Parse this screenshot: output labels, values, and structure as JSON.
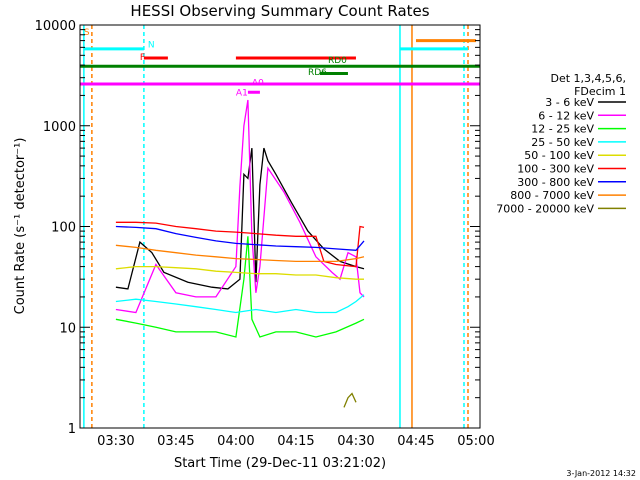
{
  "chart_data": {
    "type": "line",
    "title": "HESSI Observing Summary Count Rates",
    "xlabel": "Start Time (29-Dec-11 03:21:02)",
    "ylabel": "Count Rate (s⁻¹ detector⁻¹)",
    "y_scale": "log",
    "ylim": [
      1,
      10000
    ],
    "xlim": [
      "03:21:02",
      "05:01:00"
    ],
    "x_ticks": [
      "03:30",
      "03:45",
      "04:00",
      "04:15",
      "04:30",
      "04:45",
      "05:00"
    ],
    "y_ticks": [
      "1",
      "10",
      "100",
      "1000",
      "10000"
    ],
    "timestamp": "3-Jan-2012 14:32",
    "legend": {
      "placement": "right",
      "header": [
        "Det 1,3,4,5,6,",
        "FDecim 1"
      ]
    },
    "series": [
      {
        "name": "3 - 6 keV",
        "color": "#000000",
        "x": [
          "03:30",
          "03:33",
          "03:36",
          "03:39",
          "03:42",
          "03:48",
          "03:54",
          "03:58",
          "04:01",
          "04:02",
          "04:03",
          "04:04",
          "04:05",
          "04:06",
          "04:07",
          "04:08",
          "04:10",
          "04:14",
          "04:18",
          "04:22",
          "04:26",
          "04:30",
          "04:32"
        ],
        "y": [
          25,
          24,
          70,
          55,
          35,
          28,
          25,
          24,
          30,
          330,
          300,
          600,
          28,
          260,
          600,
          450,
          330,
          170,
          90,
          60,
          45,
          40,
          38
        ]
      },
      {
        "name": "6 - 12 keV",
        "color": "#ff00ff",
        "x": [
          "03:30",
          "03:35",
          "03:40",
          "03:45",
          "03:50",
          "03:55",
          "04:00",
          "04:01",
          "04:02",
          "04:03",
          "04:04",
          "04:05",
          "04:06",
          "04:08",
          "04:12",
          "04:16",
          "04:20",
          "04:24",
          "04:26",
          "04:28",
          "04:30",
          "04:31",
          "04:32"
        ],
        "y": [
          15,
          14,
          42,
          22,
          20,
          20,
          40,
          250,
          1000,
          1800,
          80,
          22,
          40,
          380,
          220,
          110,
          50,
          35,
          30,
          55,
          50,
          22,
          20
        ]
      },
      {
        "name": "12 - 25 keV",
        "color": "#00ff00",
        "x": [
          "03:30",
          "03:35",
          "03:40",
          "03:45",
          "03:50",
          "03:55",
          "04:00",
          "04:02",
          "04:03",
          "04:04",
          "04:06",
          "04:10",
          "04:15",
          "04:20",
          "04:25",
          "04:30",
          "04:32"
        ],
        "y": [
          12,
          11,
          10,
          9,
          9,
          9,
          8,
          30,
          80,
          12,
          8,
          9,
          9,
          8,
          9,
          11,
          12
        ]
      },
      {
        "name": "25 - 50 keV",
        "color": "#00ffff",
        "x": [
          "03:30",
          "03:35",
          "03:40",
          "03:45",
          "03:50",
          "03:55",
          "04:00",
          "04:05",
          "04:10",
          "04:15",
          "04:20",
          "04:25",
          "04:28",
          "04:30",
          "04:32"
        ],
        "y": [
          18,
          19,
          18,
          17,
          16,
          15,
          14,
          15,
          14,
          15,
          14,
          14,
          16,
          18,
          21
        ]
      },
      {
        "name": "50 - 100 keV",
        "color": "#dddd00",
        "x": [
          "03:30",
          "03:35",
          "03:40",
          "03:45",
          "03:50",
          "03:55",
          "04:00",
          "04:05",
          "04:10",
          "04:15",
          "04:20",
          "04:25",
          "04:30",
          "04:32"
        ],
        "y": [
          38,
          40,
          40,
          39,
          38,
          36,
          35,
          34,
          34,
          33,
          33,
          31,
          30,
          30
        ]
      },
      {
        "name": "100 - 300 keV",
        "color": "#ff0000",
        "x": [
          "03:30",
          "03:35",
          "03:40",
          "03:45",
          "03:50",
          "03:55",
          "04:00",
          "04:05",
          "04:10",
          "04:15",
          "04:20",
          "04:22",
          "04:25",
          "04:30",
          "04:31",
          "04:32"
        ],
        "y": [
          110,
          110,
          108,
          100,
          95,
          90,
          88,
          85,
          82,
          80,
          80,
          45,
          42,
          40,
          100,
          98
        ]
      },
      {
        "name": "300 - 800 keV",
        "color": "#0000ff",
        "x": [
          "03:30",
          "03:35",
          "03:40",
          "03:45",
          "03:50",
          "03:55",
          "04:00",
          "04:05",
          "04:10",
          "04:15",
          "04:20",
          "04:25",
          "04:30",
          "04:32"
        ],
        "y": [
          100,
          98,
          95,
          85,
          78,
          72,
          68,
          66,
          64,
          63,
          62,
          60,
          58,
          72
        ]
      },
      {
        "name": "800 - 7000 keV",
        "color": "#ff8000",
        "x": [
          "03:30",
          "03:35",
          "03:40",
          "03:45",
          "03:50",
          "03:55",
          "04:00",
          "04:05",
          "04:10",
          "04:15",
          "04:20",
          "04:25",
          "04:30",
          "04:32"
        ],
        "y": [
          65,
          62,
          58,
          55,
          52,
          50,
          48,
          47,
          46,
          45,
          45,
          45,
          48,
          50
        ]
      },
      {
        "name": "7000 - 20000 keV",
        "color": "#808000",
        "x": [
          "04:27",
          "04:28",
          "04:29",
          "04:30"
        ],
        "y": [
          1.6,
          2.0,
          2.2,
          1.8
        ]
      }
    ],
    "flag_bars": [
      {
        "label": "S",
        "color": "#ff8000",
        "label_x": "03:22",
        "label_y": 8000
      },
      {
        "label": "N",
        "color": "#00ffff",
        "label_x": "03:38",
        "label_y": 6000
      },
      {
        "label": "F",
        "color": "#ff0000",
        "label_x": "03:36",
        "label_y": 4500
      },
      {
        "label": "RD0",
        "color": "#008000",
        "label_x": "04:23",
        "label_y": 4200
      },
      {
        "label": "RD6",
        "color": "#008000",
        "label_x": "04:18",
        "label_y": 3200
      },
      {
        "label": "A0",
        "color": "#ff00ff",
        "label_x": "04:04",
        "label_y": 2500
      },
      {
        "label": "A1",
        "color": "#ff00ff",
        "label_x": "04:00",
        "label_y": 2000
      }
    ]
  }
}
